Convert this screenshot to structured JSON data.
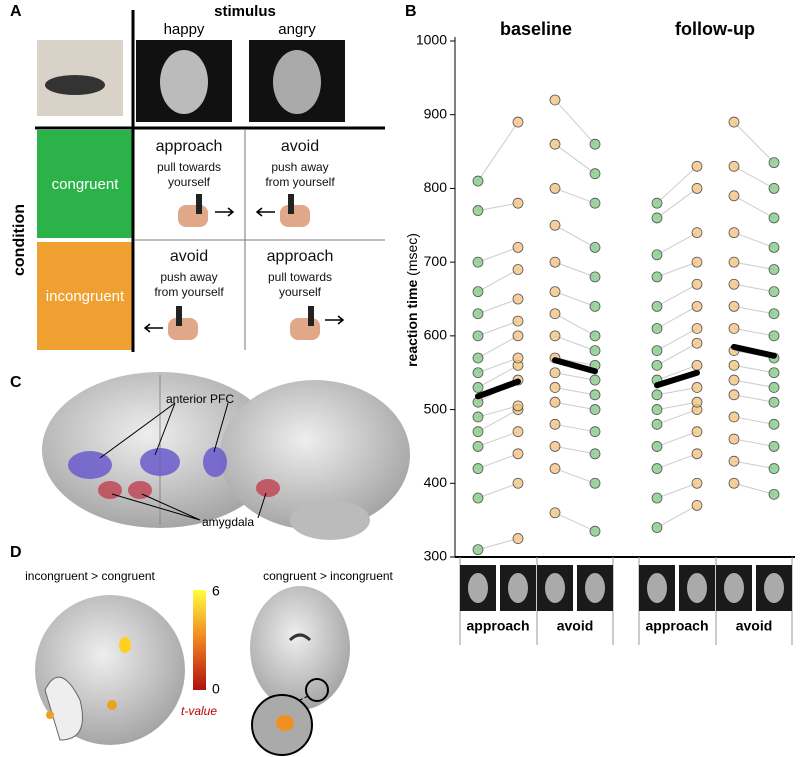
{
  "panel_labels": [
    "A",
    "B",
    "C",
    "D"
  ],
  "panel_a": {
    "header": "stimulus",
    "columns": [
      "happy",
      "angry"
    ],
    "row_header": "condition",
    "rows": [
      {
        "label": "congruent",
        "cells": [
          {
            "action": "approach",
            "instruction": "pull towards yourself"
          },
          {
            "action": "avoid",
            "instruction": "push away from yourself"
          }
        ]
      },
      {
        "label": "incongruent",
        "cells": [
          {
            "action": "avoid",
            "instruction": "push away from yourself"
          },
          {
            "action": "approach",
            "instruction": "pull towards yourself"
          }
        ]
      }
    ]
  },
  "panel_c": {
    "labels": [
      "anterior PFC",
      "amygdala"
    ]
  },
  "panel_d": {
    "left_title": "incongruent > congruent",
    "right_title": "congruent > incongruent",
    "colorbar_max": 6,
    "colorbar_min": 0,
    "colorbar_label": "t-value"
  },
  "chart_data": {
    "type": "paired-dot",
    "y_label": "reaction time",
    "y_unit": "(msec)",
    "ylim": [
      300,
      1000
    ],
    "yticks": [
      300,
      400,
      500,
      600,
      700,
      800,
      900,
      1000
    ],
    "panels": [
      {
        "title": "baseline",
        "groups": [
          {
            "label": "approach",
            "series": [
              {
                "color": "#7dc67e",
                "mean": 518,
                "values": [
                  310,
                  380,
                  420,
                  450,
                  470,
                  490,
                  510,
                  530,
                  550,
                  570,
                  600,
                  630,
                  660,
                  700,
                  770,
                  810
                ]
              },
              {
                "color": "#f2c07a",
                "mean": 538,
                "values": [
                  325,
                  400,
                  440,
                  470,
                  500,
                  505,
                  540,
                  560,
                  570,
                  600,
                  620,
                  650,
                  690,
                  720,
                  780,
                  890
                ]
              }
            ]
          },
          {
            "label": "avoid",
            "series": [
              {
                "color": "#f2c07a",
                "mean": 567,
                "values": [
                  360,
                  420,
                  450,
                  480,
                  510,
                  530,
                  550,
                  570,
                  600,
                  630,
                  660,
                  700,
                  750,
                  800,
                  860,
                  920
                ]
              },
              {
                "color": "#7dc67e",
                "mean": 552,
                "values": [
                  335,
                  400,
                  440,
                  470,
                  500,
                  520,
                  540,
                  560,
                  580,
                  600,
                  640,
                  680,
                  720,
                  780,
                  820,
                  860
                ]
              }
            ]
          }
        ]
      },
      {
        "title": "follow-up",
        "groups": [
          {
            "label": "approach",
            "series": [
              {
                "color": "#7dc67e",
                "mean": 533,
                "values": [
                  340,
                  380,
                  420,
                  450,
                  480,
                  500,
                  520,
                  540,
                  560,
                  580,
                  610,
                  640,
                  680,
                  710,
                  760,
                  780
                ]
              },
              {
                "color": "#f2c07a",
                "mean": 550,
                "values": [
                  370,
                  400,
                  440,
                  470,
                  500,
                  510,
                  530,
                  560,
                  590,
                  610,
                  640,
                  670,
                  700,
                  740,
                  800,
                  830
                ]
              }
            ]
          },
          {
            "label": "avoid",
            "series": [
              {
                "color": "#f2c07a",
                "mean": 585,
                "values": [
                  400,
                  430,
                  460,
                  490,
                  520,
                  540,
                  560,
                  580,
                  610,
                  640,
                  670,
                  700,
                  740,
                  790,
                  830,
                  890
                ]
              },
              {
                "color": "#7dc67e",
                "mean": 573,
                "values": [
                  385,
                  420,
                  450,
                  480,
                  510,
                  530,
                  550,
                  570,
                  600,
                  630,
                  660,
                  690,
                  720,
                  760,
                  800,
                  835
                ]
              }
            ]
          }
        ]
      }
    ]
  }
}
